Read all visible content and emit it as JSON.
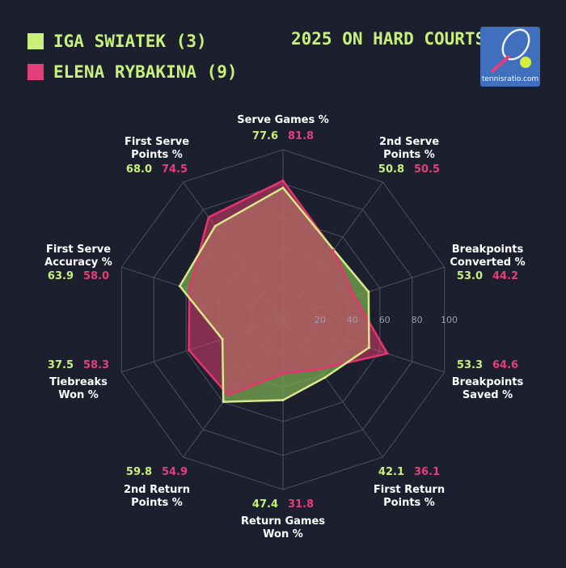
{
  "legend": {
    "player_a": "IGA SWIATEK (3)",
    "player_b": "ELENA RYBAKINA (9)"
  },
  "headline": "2025 ON HARD COURTS",
  "logo_text": "tennisratio.com",
  "colors": {
    "player_a": "#c8f07a",
    "player_b": "#e63e7c",
    "fill_overlap": "#c98a7a",
    "grid": "#4a4f62",
    "background": "#1c1f2e"
  },
  "chart_data": {
    "type": "radar",
    "rmax": 100,
    "rticks": [
      20,
      40,
      60,
      80,
      100
    ],
    "axes": [
      {
        "label": [
          "Serve Games %"
        ],
        "values": [
          "77.6",
          "81.8"
        ]
      },
      {
        "label": [
          "2nd Serve",
          "Points %"
        ],
        "values": [
          "50.8",
          "50.5"
        ]
      },
      {
        "label": [
          "Breakpoints",
          "Converted %"
        ],
        "values": [
          "53.0",
          "44.2"
        ]
      },
      {
        "label": [
          "Breakpoints",
          "Saved %"
        ],
        "values": [
          "53.3",
          "64.6"
        ]
      },
      {
        "label": [
          "First Return",
          "Points %"
        ],
        "values": [
          "42.1",
          "36.1"
        ]
      },
      {
        "label": [
          "Return Games",
          "Won %"
        ],
        "values": [
          "47.4",
          "31.8"
        ]
      },
      {
        "label": [
          "2nd Return",
          "Points %"
        ],
        "values": [
          "59.8",
          "54.9"
        ]
      },
      {
        "label": [
          "Tiebreaks",
          "Won %"
        ],
        "values": [
          "37.5",
          "58.3"
        ]
      },
      {
        "label": [
          "First Serve",
          "Accuracy %"
        ],
        "values": [
          "63.9",
          "58.0"
        ]
      },
      {
        "label": [
          "First Serve",
          "Points %"
        ],
        "values": [
          "68.0",
          "74.5"
        ]
      }
    ],
    "series": [
      {
        "name": "IGA SWIATEK (3)",
        "values": [
          77.6,
          50.8,
          53.0,
          53.3,
          42.1,
          47.4,
          59.8,
          37.5,
          63.9,
          68.0
        ]
      },
      {
        "name": "ELENA RYBAKINA (9)",
        "values": [
          81.8,
          50.5,
          44.2,
          64.6,
          36.1,
          31.8,
          54.9,
          58.3,
          58.0,
          74.5
        ]
      }
    ]
  }
}
